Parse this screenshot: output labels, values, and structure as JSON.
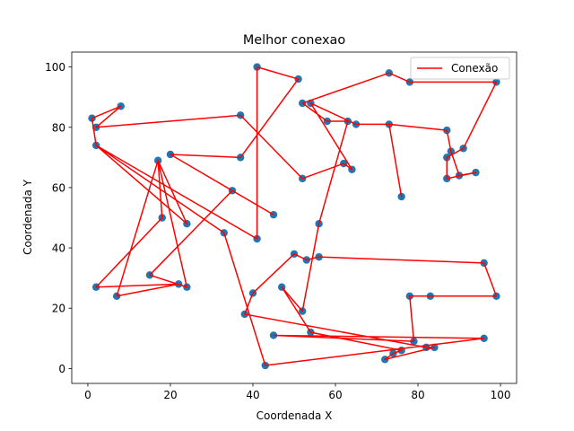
{
  "chart_data": {
    "type": "line",
    "title": "Melhor conexao",
    "xlabel": "Coordenada X",
    "ylabel": "Coordenada Y",
    "xlim": [
      -3.9,
      103.9
    ],
    "ylim": [
      -4.95,
      104.95
    ],
    "xticks": [
      0,
      20,
      40,
      60,
      80,
      100
    ],
    "yticks": [
      0,
      20,
      40,
      60,
      80,
      100
    ],
    "grid": false,
    "legend_position": "top-right",
    "route_color": "#ff0000",
    "point_color": "#1f77b4",
    "series": [
      {
        "name": "Conexão",
        "points": [
          [
            41,
            100
          ],
          [
            51,
            96
          ],
          [
            37,
            70
          ],
          [
            20,
            71
          ],
          [
            45,
            51
          ],
          [
            35,
            59
          ],
          [
            15,
            31
          ],
          [
            24,
            27
          ],
          [
            17,
            69
          ],
          [
            7,
            24
          ],
          [
            22,
            28
          ],
          [
            2,
            27
          ],
          [
            18,
            50
          ],
          [
            17,
            69
          ],
          [
            24,
            48
          ],
          [
            2,
            74
          ],
          [
            33,
            45
          ],
          [
            43,
            1
          ],
          [
            96,
            10
          ],
          [
            45,
            11
          ],
          [
            79,
            9
          ],
          [
            78,
            24
          ],
          [
            83,
            24
          ],
          [
            99,
            24
          ],
          [
            96,
            35
          ],
          [
            56,
            37
          ],
          [
            53,
            36
          ],
          [
            50,
            38
          ],
          [
            40,
            25
          ],
          [
            38,
            18
          ],
          [
            82,
            7
          ],
          [
            84,
            7
          ],
          [
            72,
            3
          ],
          [
            74,
            5
          ],
          [
            76,
            6
          ],
          [
            54,
            12
          ],
          [
            47,
            27
          ],
          [
            52,
            19
          ],
          [
            56,
            48
          ],
          [
            63,
            82
          ],
          [
            58,
            82
          ],
          [
            52,
            88
          ],
          [
            73,
            98
          ],
          [
            78,
            95
          ],
          [
            99,
            95
          ],
          [
            91,
            73
          ],
          [
            87,
            70
          ],
          [
            87,
            63
          ],
          [
            94,
            65
          ],
          [
            90,
            64
          ],
          [
            88,
            72
          ],
          [
            87,
            79
          ],
          [
            73,
            81
          ],
          [
            76,
            57
          ],
          [
            73,
            81
          ],
          [
            65,
            81
          ],
          [
            54,
            88
          ],
          [
            64,
            66
          ],
          [
            62,
            68
          ],
          [
            52,
            63
          ],
          [
            37,
            84
          ],
          [
            2,
            80
          ],
          [
            8,
            87
          ],
          [
            1,
            83
          ],
          [
            2,
            74
          ],
          [
            41,
            43
          ],
          [
            41,
            100
          ]
        ]
      }
    ]
  }
}
